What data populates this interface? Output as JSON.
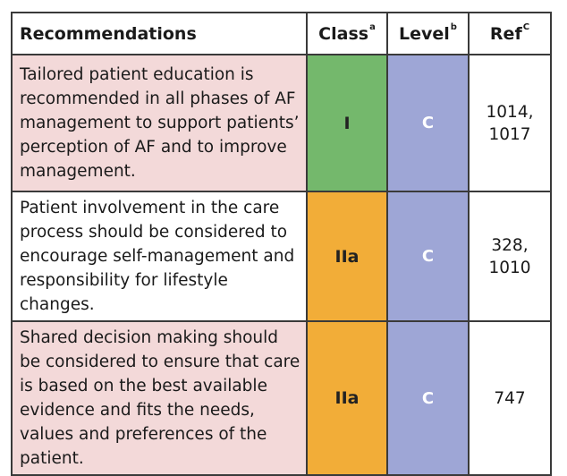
{
  "header": {
    "recommendations": "Recommendations",
    "class": "Class",
    "class_sup": "a",
    "level": "Level",
    "level_sup": "b",
    "ref": "Ref",
    "ref_sup": "C"
  },
  "rows": [
    {
      "recommendation": "Tailored patient education is recommended in all phases of AF management to support patients’ perception of AF and to improve management.",
      "class": "I",
      "level": "C",
      "refs": [
        "1014,",
        "1017"
      ]
    },
    {
      "recommendation": "Patient involvement in the care process should be considered to encourage self-management and responsibility for lifestyle changes.",
      "class": "IIa",
      "level": "C",
      "refs": [
        "328,",
        "1010"
      ]
    },
    {
      "recommendation": "Shared decision making should be considered to ensure that care is based on the best available evidence and fits the needs, values and preferences of the patient.",
      "class": "IIa",
      "level": "C",
      "refs": [
        "747"
      ]
    }
  ],
  "colors": {
    "row_pink": "#f3d9d9",
    "class_I_green": "#74b86c",
    "class_IIa_orange": "#f2ad38",
    "level_C_lavender": "#9ea6d6"
  }
}
